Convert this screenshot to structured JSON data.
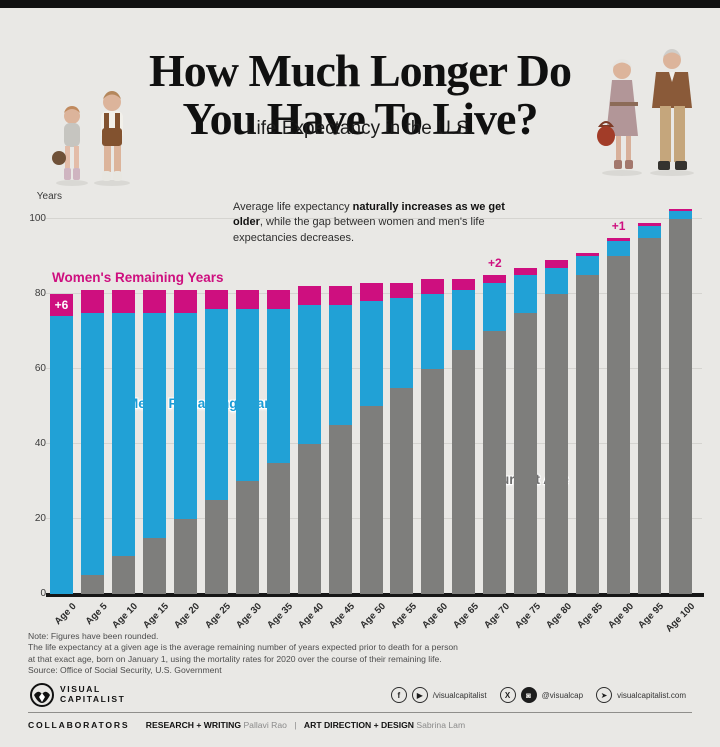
{
  "header": {
    "title_line1": "How Much Longer Do",
    "title_line2": "You Have To Live?",
    "subtitle": "Life Expectancy in the U.S."
  },
  "chart": {
    "y_axis_title": "Years",
    "series_labels": {
      "women": "Women's Remaining Years",
      "men": "Men's Remaining Years",
      "current": "Current Age"
    },
    "annotation_parts": {
      "p1": "Average life expectancy ",
      "b1": "naturally increases as we get older",
      "p2": ", while the gap between women and men's life expectancies decreases."
    }
  },
  "chart_data": {
    "type": "bar",
    "stacked": true,
    "title": "How Much Longer Do You Have To Live? — Life Expectancy in the U.S.",
    "xlabel": "Current Age",
    "ylabel": "Years",
    "ylim": [
      0,
      105
    ],
    "yticks": [
      0,
      20,
      40,
      60,
      80,
      100
    ],
    "grid": true,
    "categories": [
      "Age 0",
      "Age 5",
      "Age 10",
      "Age 15",
      "Age 20",
      "Age 25",
      "Age 30",
      "Age 35",
      "Age 40",
      "Age 45",
      "Age 50",
      "Age 55",
      "Age 60",
      "Age 65",
      "Age 70",
      "Age 75",
      "Age 80",
      "Age 85",
      "Age 90",
      "Age 95",
      "Age 100"
    ],
    "series": [
      {
        "name": "Current Age",
        "color": "#7e7e7c",
        "values": [
          0,
          5,
          10,
          15,
          20,
          25,
          30,
          35,
          40,
          45,
          50,
          55,
          60,
          65,
          70,
          75,
          80,
          85,
          90,
          95,
          100
        ]
      },
      {
        "name": "Men's Remaining Years",
        "color": "#21a1d6",
        "values": [
          74,
          70,
          65,
          60,
          55,
          51,
          46,
          41,
          37,
          32,
          28,
          24,
          20,
          16,
          13,
          10,
          7,
          5,
          4,
          3,
          2
        ]
      },
      {
        "name": "Women's Remaining Years (extra vs men)",
        "color": "#ce0f7f",
        "values": [
          6,
          6,
          6,
          6,
          6,
          5,
          5,
          5,
          5,
          5,
          5,
          4,
          4,
          3,
          2,
          2,
          2,
          1,
          1,
          1,
          0
        ]
      }
    ],
    "callouts": [
      {
        "category": "Age 0",
        "text": "+6",
        "placement": "inside"
      },
      {
        "category": "Age 70",
        "text": "+2",
        "placement": "above"
      },
      {
        "category": "Age 90",
        "text": "+1",
        "placement": "above"
      }
    ],
    "legend_position": "labels-in-plot"
  },
  "notes": {
    "line1": "Note: Figures have been rounded.",
    "line2": "The life expectancy at a given age is the average remaining number of years expected prior to death for a person",
    "line3": "at that exact age, born on January 1, using the mortality rates for 2020 over the course of their remaining life.",
    "line4": "Source: Office of Social Security, U.S. Government"
  },
  "footer": {
    "brand_line1": "VISUAL",
    "brand_line2": "CAPITALIST",
    "social_icon_f": "f",
    "social_icon_yt": "▶",
    "social_handle_1": "/visualcapitalist",
    "social_icon_x": "X",
    "social_icon_ig": "◙",
    "social_handle_2": "@visualcap",
    "social_icon_cursor": "➤",
    "social_handle_3": "visualcapitalist.com",
    "collaborators_label": "COLLABORATORS",
    "research_label": "RESEARCH + WRITING",
    "research_name": "Pallavi Rao",
    "divider": "|",
    "art_label": "ART DIRECTION + DESIGN",
    "art_name": "Sabrina Lam"
  },
  "colors": {
    "background": "#e9e8e5",
    "bar_gray": "#7e7e7c",
    "bar_blue": "#21a1d6",
    "bar_pink": "#ce0f7f",
    "axis_line": "#161616",
    "top_border": "#111111"
  }
}
